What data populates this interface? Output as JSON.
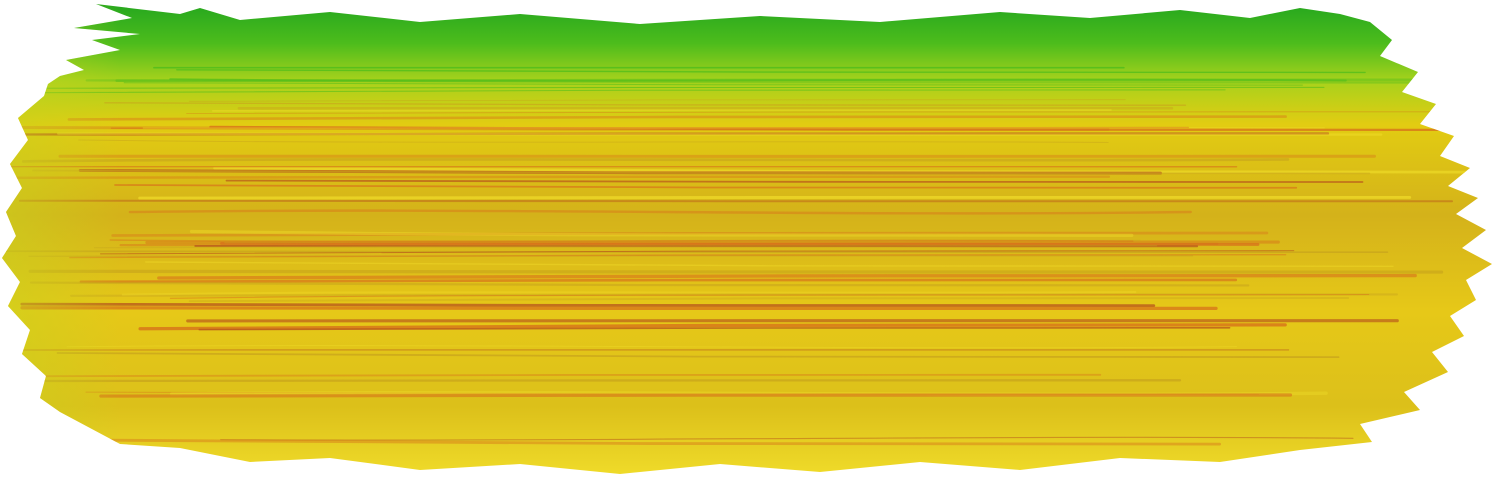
{
  "image": {
    "subject": "paint-brush-stroke",
    "background_color": "#ffffff",
    "palette": {
      "green_dark": "#22a51f",
      "green": "#4cbc1c",
      "lime": "#a8d21c",
      "yellow": "#e2cc12",
      "yellow_light": "#f0dc2a",
      "ochre": "#c9a51c",
      "orange": "#d7711a",
      "rust": "#b8561c"
    },
    "stroke_colors_top_to_bottom": [
      "#22a51f",
      "#4cbc1c",
      "#a8d21c",
      "#e2cc12",
      "#d4b21a",
      "#e6c818",
      "#f0dc2a"
    ]
  }
}
